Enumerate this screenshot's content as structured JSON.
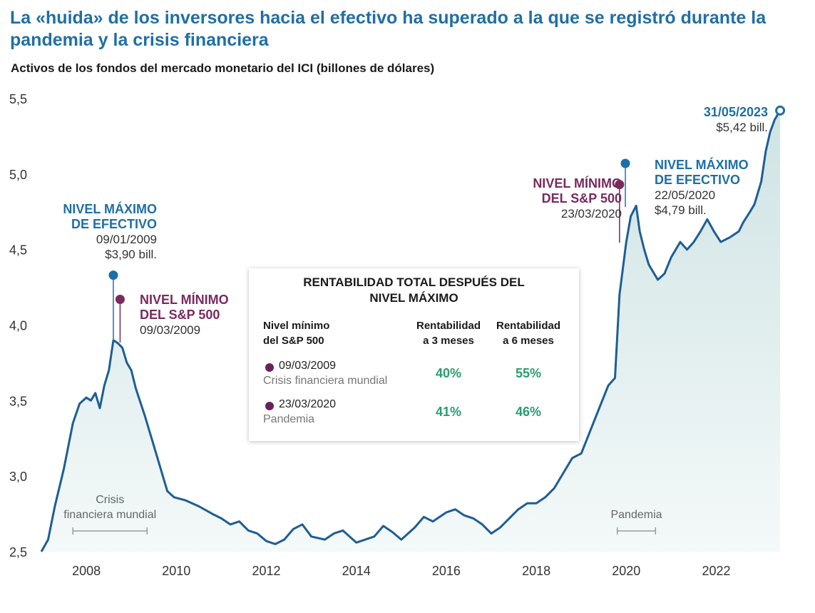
{
  "title": "La «huida» de los inversores hacia el efectivo ha superado a la que se registró durante la pandemia y la crisis financiera",
  "subtitle": "Activos de los fondos del mercado monetario del ICI (billones de dólares)",
  "chart_data": {
    "type": "line",
    "title": "Activos de los fondos del mercado monetario del ICI (billones de dólares)",
    "ylabel": "billones de dólares",
    "ylim": [
      2.5,
      5.5
    ],
    "yticks": [
      "2,5",
      "3,0",
      "3,5",
      "4,0",
      "4,5",
      "5,0",
      "5,5"
    ],
    "ytick_values": [
      2.5,
      3.0,
      3.5,
      4.0,
      4.5,
      5.0,
      5.5
    ],
    "xlim": [
      2007.0,
      2023.45
    ],
    "xticks": [
      "2008",
      "2010",
      "2012",
      "2014",
      "2016",
      "2018",
      "2020",
      "2022"
    ],
    "xtick_values": [
      2008,
      2010,
      2012,
      2014,
      2016,
      2018,
      2020,
      2022
    ],
    "grid": false,
    "series": [
      {
        "name": "Activos de los fondos del mercado monetario",
        "color": "#1e5e94",
        "x": [
          2007.0,
          2007.15,
          2007.3,
          2007.5,
          2007.7,
          2007.85,
          2008.0,
          2008.1,
          2008.2,
          2008.3,
          2008.4,
          2008.5,
          2008.6,
          2008.7,
          2008.8,
          2008.9,
          2009.0,
          2009.1,
          2009.3,
          2009.5,
          2009.7,
          2009.8,
          2009.95,
          2010.2,
          2010.5,
          2010.8,
          2011.0,
          2011.2,
          2011.4,
          2011.6,
          2011.8,
          2012.0,
          2012.2,
          2012.4,
          2012.6,
          2012.8,
          2013.0,
          2013.3,
          2013.5,
          2013.7,
          2014.0,
          2014.2,
          2014.4,
          2014.6,
          2014.8,
          2015.0,
          2015.3,
          2015.5,
          2015.7,
          2016.0,
          2016.2,
          2016.4,
          2016.6,
          2016.8,
          2017.0,
          2017.2,
          2017.4,
          2017.6,
          2017.8,
          2018.0,
          2018.2,
          2018.4,
          2018.6,
          2018.8,
          2019.0,
          2019.2,
          2019.4,
          2019.6,
          2019.75,
          2019.85,
          2020.0,
          2020.1,
          2020.22,
          2020.3,
          2020.4,
          2020.5,
          2020.7,
          2020.85,
          2021.0,
          2021.2,
          2021.35,
          2021.5,
          2021.65,
          2021.8,
          2021.95,
          2022.1,
          2022.3,
          2022.5,
          2022.6,
          2022.75,
          2022.85,
          2023.0,
          2023.1,
          2023.2,
          2023.3,
          2023.42
        ],
        "y": [
          2.5,
          2.58,
          2.8,
          3.05,
          3.35,
          3.48,
          3.52,
          3.5,
          3.55,
          3.45,
          3.6,
          3.7,
          3.9,
          3.88,
          3.85,
          3.75,
          3.7,
          3.58,
          3.4,
          3.2,
          3.0,
          2.9,
          2.86,
          2.84,
          2.8,
          2.75,
          2.72,
          2.68,
          2.7,
          2.64,
          2.62,
          2.57,
          2.55,
          2.58,
          2.65,
          2.68,
          2.6,
          2.58,
          2.62,
          2.64,
          2.56,
          2.58,
          2.6,
          2.67,
          2.63,
          2.58,
          2.66,
          2.73,
          2.7,
          2.76,
          2.78,
          2.74,
          2.72,
          2.68,
          2.62,
          2.66,
          2.72,
          2.78,
          2.82,
          2.82,
          2.86,
          2.92,
          3.02,
          3.12,
          3.15,
          3.3,
          3.45,
          3.6,
          3.65,
          4.2,
          4.55,
          4.72,
          4.79,
          4.62,
          4.5,
          4.4,
          4.3,
          4.34,
          4.45,
          4.55,
          4.5,
          4.55,
          4.62,
          4.7,
          4.62,
          4.55,
          4.58,
          4.62,
          4.68,
          4.75,
          4.8,
          4.95,
          5.15,
          5.28,
          5.36,
          5.42
        ]
      }
    ],
    "annotations": [
      {
        "x": 2008.6,
        "y": 4.33,
        "style": "peak",
        "heading": [
          "NIVEL MÁXIMO",
          "DE EFECTIVO"
        ],
        "date": "09/01/2009",
        "value": "$3,90 bill."
      },
      {
        "x": 2008.75,
        "y": 4.17,
        "style": "low",
        "heading": [
          "NIVEL MÍNIMO",
          "DEL S&P 500"
        ],
        "date": "09/03/2009"
      },
      {
        "x": 2019.85,
        "y": 4.93,
        "style": "low",
        "heading": [
          "NIVEL MÍNIMO",
          "DEL S&P 500"
        ],
        "date": "23/03/2020"
      },
      {
        "x": 2019.98,
        "y": 5.07,
        "style": "peak",
        "heading": [
          "NIVEL MÁXIMO",
          "DE EFECTIVO"
        ],
        "date": "22/05/2020",
        "value": "$4,79 bill."
      },
      {
        "x": 2023.42,
        "y": 5.42,
        "style": "latest",
        "heading": [
          "31/05/2023"
        ],
        "value": "$5,42 bill."
      }
    ],
    "periods": [
      {
        "label": [
          "Crisis",
          "financiera mundial"
        ],
        "start": 2007.7,
        "end": 2009.35
      },
      {
        "label": [
          "Pandemia"
        ],
        "start": 2019.8,
        "end": 2020.65
      }
    ]
  },
  "panel": {
    "title_lines": [
      "RENTABILIDAD TOTAL DESPUÉS DEL",
      "NIVEL MÁXIMO"
    ],
    "col_low": [
      "Nivel mínimo",
      "del S&P 500"
    ],
    "col_3m": [
      "Rentabilidad",
      "a 3 meses"
    ],
    "col_6m": [
      "Rentabilidad",
      "a 6 meses"
    ],
    "rows": [
      {
        "date": "09/03/2009",
        "label": "Crisis financiera mundial",
        "r3": "40%",
        "r6": "55%"
      },
      {
        "date": "23/03/2020",
        "label": "Pandemia",
        "r3": "41%",
        "r6": "46%"
      }
    ]
  },
  "colors": {
    "title": "#1f6fa6",
    "line": "#1e5e94",
    "peak": "#1f6fa6",
    "low": "#7a2a5e",
    "return": "#2a9d6f"
  }
}
